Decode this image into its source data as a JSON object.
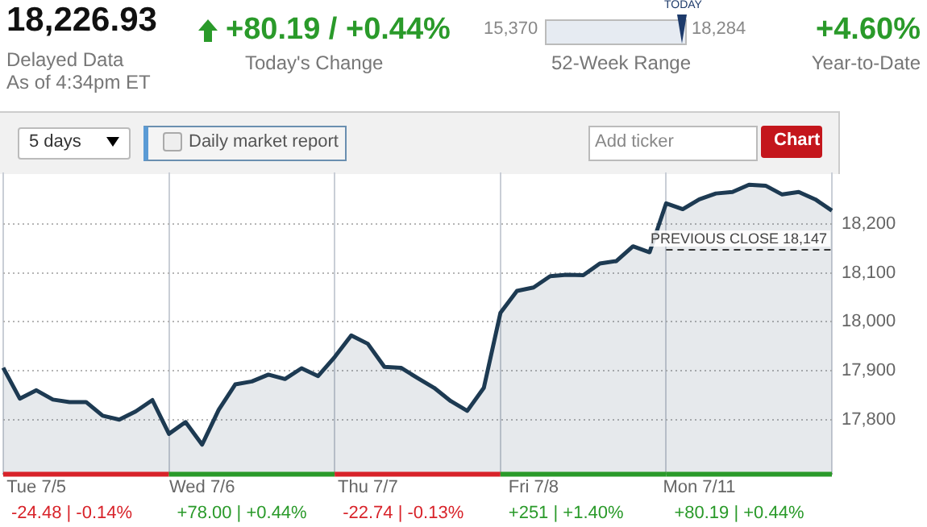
{
  "chart_data": {
    "type": "area",
    "title": "18,226.93",
    "annotations": [
      "Delayed Data",
      "As of 4:34pm ET",
      "+80.19 / +0.44%",
      "Today's Change",
      "15,370",
      "18,284",
      "TODAY",
      "52-Week Range",
      "+4.60%",
      "Year-to-Date",
      "5 days",
      "Daily market report",
      "Add ticker",
      "Chart",
      "-24.48 | -0.14%",
      "+78.00 | +0.44%",
      "-22.74 | -0.13%",
      "+251 | +1.40%",
      "+80.19 | +0.44%"
    ],
    "categories": [
      null,
      null,
      "Tue 7/5",
      null,
      null,
      null,
      null,
      null,
      null,
      null,
      null,
      null,
      "Wed 7/6",
      null,
      null,
      null,
      null,
      null,
      null,
      null,
      null,
      null,
      "Thu 7/7",
      null,
      null,
      null,
      null,
      null,
      null,
      null,
      null,
      null,
      "Fri 7/8",
      null,
      null,
      null,
      null,
      null,
      null,
      null,
      null,
      null,
      "Mon 7/11",
      null,
      null,
      null,
      null,
      null,
      null,
      null,
      null
    ],
    "series": [
      {
        "color": "#1d3a52",
        "values": [
          17906,
          17843,
          17860,
          17841,
          17836,
          17836,
          17808,
          17800,
          17817,
          17840,
          17771,
          17795,
          17749,
          17820,
          17872,
          17878,
          17892,
          17883,
          17905,
          17889,
          17928,
          17972,
          17955,
          17908,
          17906,
          17885,
          17865,
          17838,
          17818,
          17865,
          18018,
          18063,
          18070,
          18093,
          18096,
          18095,
          18119,
          18124,
          18154,
          18142,
          18242,
          18230,
          18250,
          18262,
          18265,
          18280,
          18278,
          18260,
          18265,
          18250,
          18227
        ]
      }
    ],
    "ylim": [
      17690,
      18305
    ],
    "yticks": [
      {
        "value": 17800,
        "label": "17,800"
      },
      {
        "value": 17900,
        "label": "17,900"
      },
      {
        "value": 18000,
        "label": "18,000"
      },
      {
        "value": 18100,
        "label": "18,100"
      },
      {
        "value": 18200,
        "label": "18,200"
      }
    ],
    "ref_lines": [
      {
        "axis": "y",
        "value": 18147,
        "label": "PREVIOUS CLOSE 18,147",
        "line_style": "dashed",
        "color": "#333333"
      }
    ],
    "grid": true,
    "legend": false,
    "marker": "none",
    "line_style": "solid"
  }
}
